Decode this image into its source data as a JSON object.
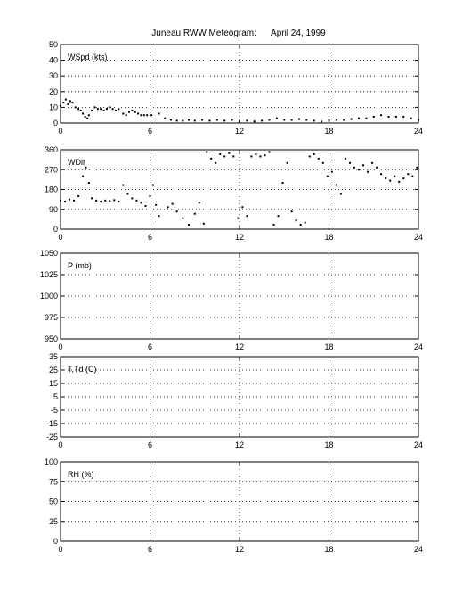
{
  "page": {
    "title": "Juneau RWW Meteogram:      April 24, 1999"
  },
  "chart_data": [
    {
      "type": "scatter",
      "panel_label": "WSpd (kts)",
      "x_ticks": [
        0,
        6,
        12,
        18,
        24
      ],
      "y_ticks": [
        0,
        10,
        20,
        30,
        40,
        50
      ],
      "xlim": [
        0,
        24
      ],
      "ylim": [
        0,
        50
      ],
      "grid": true,
      "points": [
        [
          0.0,
          11
        ],
        [
          0.2,
          13
        ],
        [
          0.35,
          15
        ],
        [
          0.5,
          12
        ],
        [
          0.65,
          14
        ],
        [
          0.8,
          13
        ],
        [
          1.0,
          10
        ],
        [
          1.2,
          9
        ],
        [
          1.35,
          8
        ],
        [
          1.5,
          6
        ],
        [
          1.65,
          4
        ],
        [
          1.8,
          3
        ],
        [
          1.9,
          5
        ],
        [
          2.1,
          8
        ],
        [
          2.3,
          10
        ],
        [
          2.5,
          9
        ],
        [
          2.7,
          9
        ],
        [
          2.9,
          8
        ],
        [
          3.1,
          9
        ],
        [
          3.3,
          10
        ],
        [
          3.5,
          9
        ],
        [
          3.7,
          8
        ],
        [
          3.9,
          9
        ],
        [
          4.2,
          6
        ],
        [
          4.4,
          5
        ],
        [
          4.6,
          7
        ],
        [
          4.8,
          8
        ],
        [
          5.0,
          7
        ],
        [
          5.2,
          6
        ],
        [
          5.4,
          5
        ],
        [
          5.6,
          5
        ],
        [
          5.8,
          5
        ],
        [
          6.1,
          5
        ],
        [
          6.6,
          6
        ],
        [
          7.0,
          3
        ],
        [
          7.4,
          2
        ],
        [
          7.8,
          1.5
        ],
        [
          8.2,
          1.5
        ],
        [
          8.6,
          2
        ],
        [
          9.0,
          1.5
        ],
        [
          9.5,
          2
        ],
        [
          10.0,
          1.5
        ],
        [
          10.5,
          2
        ],
        [
          11.0,
          1.5
        ],
        [
          11.5,
          2
        ],
        [
          12.0,
          1
        ],
        [
          12.5,
          1.5
        ],
        [
          13.0,
          1
        ],
        [
          13.5,
          1.5
        ],
        [
          14.0,
          2
        ],
        [
          14.5,
          3
        ],
        [
          15.0,
          2
        ],
        [
          15.5,
          2
        ],
        [
          16.0,
          2.5
        ],
        [
          16.5,
          2
        ],
        [
          17.0,
          1.5
        ],
        [
          17.5,
          1
        ],
        [
          18.0,
          1.5
        ],
        [
          18.5,
          2
        ],
        [
          19.0,
          2
        ],
        [
          19.5,
          2.5
        ],
        [
          20.0,
          3
        ],
        [
          20.5,
          3
        ],
        [
          21.0,
          4
        ],
        [
          21.5,
          5
        ],
        [
          22.0,
          4
        ],
        [
          22.5,
          4
        ],
        [
          23.0,
          4
        ],
        [
          23.5,
          3
        ],
        [
          24.0,
          2
        ]
      ]
    },
    {
      "type": "scatter",
      "panel_label": "WDir",
      "x_ticks": [
        0,
        6,
        12,
        18,
        24
      ],
      "y_ticks": [
        0,
        90,
        180,
        270,
        360
      ],
      "xlim": [
        0,
        24
      ],
      "ylim": [
        0,
        360
      ],
      "grid": true,
      "points": [
        [
          0.0,
          130
        ],
        [
          0.3,
          125
        ],
        [
          0.6,
          135
        ],
        [
          0.9,
          130
        ],
        [
          1.2,
          150
        ],
        [
          1.5,
          240
        ],
        [
          1.7,
          280
        ],
        [
          1.9,
          210
        ],
        [
          2.1,
          140
        ],
        [
          2.4,
          130
        ],
        [
          2.7,
          125
        ],
        [
          3.0,
          130
        ],
        [
          3.3,
          128
        ],
        [
          3.6,
          132
        ],
        [
          3.9,
          125
        ],
        [
          4.2,
          200
        ],
        [
          4.5,
          160
        ],
        [
          4.8,
          140
        ],
        [
          5.1,
          130
        ],
        [
          5.4,
          120
        ],
        [
          5.7,
          105
        ],
        [
          6.0,
          150
        ],
        [
          6.2,
          200
        ],
        [
          6.4,
          110
        ],
        [
          6.6,
          60
        ],
        [
          7.2,
          100
        ],
        [
          7.5,
          115
        ],
        [
          7.8,
          80
        ],
        [
          8.2,
          50
        ],
        [
          8.6,
          20
        ],
        [
          9.0,
          70
        ],
        [
          9.3,
          120
        ],
        [
          9.6,
          25
        ],
        [
          9.8,
          350
        ],
        [
          10.1,
          320
        ],
        [
          10.4,
          300
        ],
        [
          10.7,
          340
        ],
        [
          11.0,
          330
        ],
        [
          11.3,
          345
        ],
        [
          11.6,
          330
        ],
        [
          11.9,
          50
        ],
        [
          12.2,
          100
        ],
        [
          12.5,
          60
        ],
        [
          12.8,
          330
        ],
        [
          13.1,
          340
        ],
        [
          13.4,
          330
        ],
        [
          13.7,
          335
        ],
        [
          14.0,
          350
        ],
        [
          14.3,
          20
        ],
        [
          14.6,
          60
        ],
        [
          14.9,
          210
        ],
        [
          15.2,
          300
        ],
        [
          15.5,
          80
        ],
        [
          15.8,
          40
        ],
        [
          16.1,
          20
        ],
        [
          16.4,
          30
        ],
        [
          16.7,
          330
        ],
        [
          17.0,
          340
        ],
        [
          17.3,
          320
        ],
        [
          17.6,
          300
        ],
        [
          17.9,
          240
        ],
        [
          18.2,
          260
        ],
        [
          18.5,
          200
        ],
        [
          18.8,
          160
        ],
        [
          19.1,
          320
        ],
        [
          19.4,
          300
        ],
        [
          19.7,
          280
        ],
        [
          20.0,
          270
        ],
        [
          20.3,
          290
        ],
        [
          20.6,
          260
        ],
        [
          20.9,
          300
        ],
        [
          21.2,
          280
        ],
        [
          21.5,
          250
        ],
        [
          21.8,
          230
        ],
        [
          22.1,
          220
        ],
        [
          22.4,
          240
        ],
        [
          22.7,
          215
        ],
        [
          23.0,
          230
        ],
        [
          23.3,
          250
        ],
        [
          23.6,
          240
        ],
        [
          23.9,
          280
        ]
      ]
    },
    {
      "type": "scatter",
      "panel_label": "P (mb)",
      "x_ticks": [
        0,
        6,
        12,
        18,
        24
      ],
      "y_ticks": [
        950,
        975,
        1000,
        1025,
        1050
      ],
      "xlim": [
        0,
        24
      ],
      "ylim": [
        950,
        1050
      ],
      "grid": true,
      "points": []
    },
    {
      "type": "scatter",
      "panel_label": "T,Td (C)",
      "x_ticks": [
        0,
        6,
        12,
        18,
        24
      ],
      "y_ticks": [
        -25,
        -15,
        -5,
        5,
        15,
        25,
        35
      ],
      "xlim": [
        0,
        24
      ],
      "ylim": [
        -25,
        35
      ],
      "grid": true,
      "points": []
    },
    {
      "type": "scatter",
      "panel_label": "RH (%)",
      "x_ticks": [
        0,
        6,
        12,
        18,
        24
      ],
      "y_ticks": [
        0,
        25,
        50,
        75,
        100
      ],
      "xlim": [
        0,
        24
      ],
      "ylim": [
        0,
        100
      ],
      "grid": true,
      "points": []
    }
  ]
}
